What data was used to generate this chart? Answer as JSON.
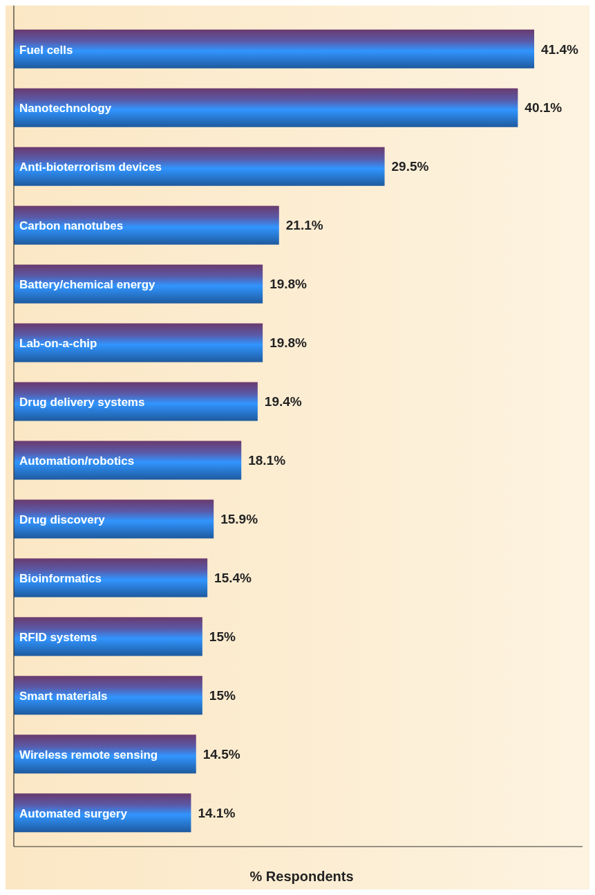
{
  "chart_data": {
    "type": "bar",
    "orientation": "horizontal",
    "xlabel": "% Respondents",
    "categories": [
      "Fuel cells",
      "Nanotechnology",
      "Anti-bioterrorism devices",
      "Carbon nanotubes",
      "Battery/chemical energy",
      "Lab-on-a-chip",
      "Drug delivery systems",
      "Automation/robotics",
      "Drug discovery",
      "Bioinformatics",
      "RFID systems",
      "Smart materials",
      "Wireless remote sensing",
      "Automated surgery"
    ],
    "values": [
      41.4,
      40.1,
      29.5,
      21.1,
      19.8,
      19.8,
      19.4,
      18.1,
      15.9,
      15.4,
      15,
      15,
      14.5,
      14.1
    ],
    "value_labels": [
      "41.4%",
      "40.1%",
      "29.5%",
      "21.1%",
      "19.8%",
      "19.8%",
      "19.4%",
      "18.1%",
      "15.9%",
      "15.4%",
      "15%",
      "15%",
      "14.5%",
      "14.1%"
    ],
    "color": "#2570c4"
  }
}
